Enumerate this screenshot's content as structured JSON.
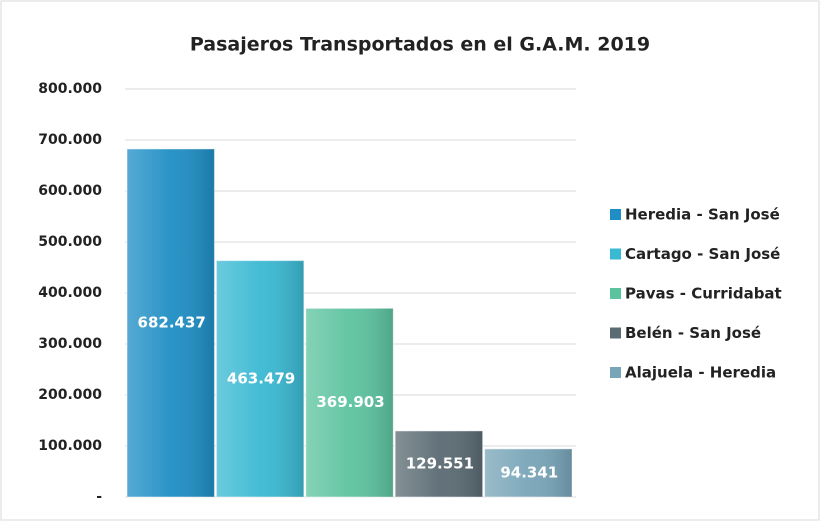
{
  "chart_data": {
    "type": "bar",
    "title": "Pasajeros Transportados en el G.A.M. 2019",
    "categories": [
      null
    ],
    "series": [
      {
        "name": "Heredia - San José",
        "color": "#1e8ec4",
        "values": [
          682437
        ],
        "value_labels": [
          "682.437"
        ]
      },
      {
        "name": "Cartago - San José",
        "color": "#3ab9d2",
        "values": [
          463479
        ],
        "value_labels": [
          "463.479"
        ]
      },
      {
        "name": "Pavas - Curridabat",
        "color": "#5cc39f",
        "values": [
          369903
        ],
        "value_labels": [
          "369.903"
        ]
      },
      {
        "name": "Belén - San José",
        "color": "#5b6b73",
        "values": [
          129551
        ],
        "value_labels": [
          "129.551"
        ]
      },
      {
        "name": "Alajuela - Heredia",
        "color": "#78a5b8",
        "values": [
          94341
        ],
        "value_labels": [
          "94.341"
        ]
      }
    ],
    "ylim": [
      0,
      800000
    ],
    "yticks": [
      {
        "value": 0,
        "label": "-"
      },
      {
        "value": 100000,
        "label": "100.000"
      },
      {
        "value": 200000,
        "label": "200.000"
      },
      {
        "value": 300000,
        "label": "300.000"
      },
      {
        "value": 400000,
        "label": "400.000"
      },
      {
        "value": 500000,
        "label": "500.000"
      },
      {
        "value": 600000,
        "label": "600.000"
      },
      {
        "value": 700000,
        "label": "700.000"
      },
      {
        "value": 800000,
        "label": "800.000"
      }
    ],
    "grid": true,
    "legend": "right"
  }
}
